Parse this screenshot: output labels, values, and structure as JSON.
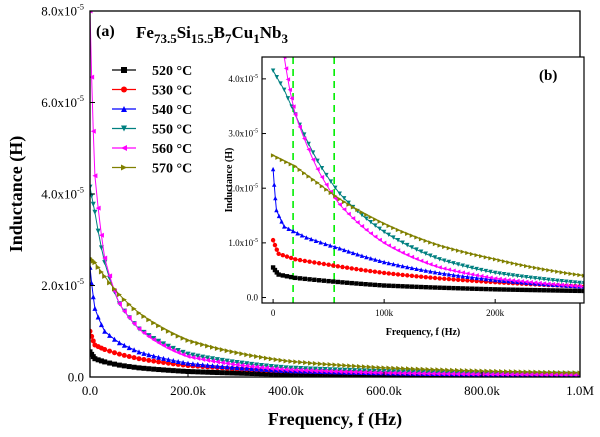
{
  "figure": {
    "label_a": "(a)",
    "label_b": "(b)",
    "composition": [
      {
        "t": "Fe",
        "sub": false
      },
      {
        "t": "73.5",
        "sub": true
      },
      {
        "t": "Si",
        "sub": false
      },
      {
        "t": "15.5",
        "sub": true
      },
      {
        "t": "B",
        "sub": false
      },
      {
        "t": "7",
        "sub": true
      },
      {
        "t": "Cu",
        "sub": false
      },
      {
        "t": "1",
        "sub": true
      },
      {
        "t": "Nb",
        "sub": false
      },
      {
        "t": "3",
        "sub": true
      }
    ]
  },
  "chart_data": [
    {
      "id": "main",
      "type": "line",
      "xlabel": "Frequency, f (Hz)",
      "ylabel": "Inductance (H)",
      "xlim": [
        0,
        1000000
      ],
      "ylim": [
        0,
        8e-05
      ],
      "xticks": [
        {
          "v": 0,
          "label": "0.0"
        },
        {
          "v": 200000,
          "label": "200.0k"
        },
        {
          "v": 400000,
          "label": "400.0k"
        },
        {
          "v": 600000,
          "label": "600.0k"
        },
        {
          "v": 800000,
          "label": "800.0k"
        },
        {
          "v": 1000000,
          "label": "1.0M"
        }
      ],
      "yticks": [
        {
          "v": 0,
          "label": "0.0",
          "exp": ""
        },
        {
          "v": 2e-05,
          "label": "2.0x10",
          "exp": "-5"
        },
        {
          "v": 4e-05,
          "label": "4.0x10",
          "exp": "-5"
        },
        {
          "v": 6e-05,
          "label": "6.0x10",
          "exp": "-5"
        },
        {
          "v": 8e-05,
          "label": "8.0x10",
          "exp": "-5"
        }
      ],
      "legend_position": "upper-left",
      "series": [
        {
          "name": "520 °C",
          "color": "#000000",
          "marker": "square",
          "x": [
            0,
            10000,
            30000,
            60000,
            100000,
            200000,
            400000,
            600000,
            800000,
            1000000
          ],
          "y": [
            5.5e-06,
            4e-06,
            3.3e-06,
            2.6e-06,
            2e-06,
            1.2e-06,
            6e-07,
            4e-07,
            3e-07,
            2.5e-07
          ]
        },
        {
          "name": "530 °C",
          "color": "#ff0000",
          "marker": "circle",
          "x": [
            0,
            10000,
            30000,
            60000,
            100000,
            200000,
            400000,
            600000,
            800000,
            1000000
          ],
          "y": [
            1e-05,
            7e-06,
            6e-06,
            5e-06,
            4e-06,
            2.5e-06,
            1.3e-06,
            9e-07,
            7e-07,
            6e-07
          ]
        },
        {
          "name": "540 °C",
          "color": "#0000ff",
          "marker": "triangle-up",
          "x": [
            0,
            10000,
            30000,
            60000,
            100000,
            200000,
            400000,
            600000,
            800000,
            1000000
          ],
          "y": [
            2.4e-05,
            1.5e-05,
            1e-05,
            7.5e-06,
            5.5e-06,
            3e-06,
            1.4e-06,
            9e-07,
            6.5e-07,
            5e-07
          ]
        },
        {
          "name": "550 °C",
          "color": "#008080",
          "marker": "triangle-down",
          "x": [
            0,
            10000,
            30000,
            60000,
            100000,
            200000,
            400000,
            600000,
            800000,
            1000000
          ],
          "y": [
            4.15e-05,
            3.6e-05,
            2.5e-05,
            1.6e-05,
            1.05e-05,
            5e-06,
            2e-06,
            1.2e-06,
            8e-07,
            6e-07
          ]
        },
        {
          "name": "560 °C",
          "color": "#ff00ff",
          "marker": "triangle-left",
          "x": [
            0,
            10000,
            30000,
            60000,
            100000,
            200000,
            400000,
            600000,
            800000,
            1000000
          ],
          "y": [
            8e-05,
            4.4e-05,
            2.6e-05,
            1.6e-05,
            1.05e-05,
            4.5e-06,
            1.6e-06,
            9e-07,
            6e-07,
            4.5e-07
          ]
        },
        {
          "name": "570 °C",
          "color": "#808000",
          "marker": "triangle-right",
          "x": [
            0,
            10000,
            30000,
            60000,
            100000,
            200000,
            400000,
            600000,
            800000,
            1000000
          ],
          "y": [
            2.6e-05,
            2.5e-05,
            2.2e-05,
            1.8e-05,
            1.4e-05,
            8e-06,
            3.5e-06,
            2e-06,
            1.3e-06,
            9e-07
          ]
        }
      ]
    },
    {
      "id": "inset",
      "type": "line",
      "xlabel": "Frequency, f (Hz)",
      "ylabel": "Inductance (H)",
      "xlim": [
        -10000,
        280000
      ],
      "ylim": [
        -1e-06,
        4.4e-05
      ],
      "xticks": [
        {
          "v": 0,
          "label": "0"
        },
        {
          "v": 100000,
          "label": "100k"
        },
        {
          "v": 200000,
          "label": "200k"
        }
      ],
      "yticks": [
        {
          "v": 0,
          "label": "0.0",
          "exp": ""
        },
        {
          "v": 1e-05,
          "label": "1.0x10",
          "exp": "-5"
        },
        {
          "v": 2e-05,
          "label": "2.0x10",
          "exp": "-5"
        },
        {
          "v": 3e-05,
          "label": "3.0x10",
          "exp": "-5"
        },
        {
          "v": 4e-05,
          "label": "4.0x10",
          "exp": "-5"
        }
      ],
      "vlines": [
        {
          "x": 18000,
          "color": "#00ee00",
          "style": "dashed"
        },
        {
          "x": 55000,
          "color": "#00ee00",
          "style": "dashed"
        }
      ],
      "series": [
        {
          "name": "520 °C",
          "color": "#000000",
          "marker": "square",
          "x": [
            0,
            5000,
            20000,
            50000,
            100000,
            150000,
            200000,
            280000
          ],
          "y": [
            5.5e-06,
            4.2e-06,
            3.6e-06,
            3e-06,
            2.2e-06,
            1.8e-06,
            1.5e-06,
            1.2e-06
          ]
        },
        {
          "name": "530 °C",
          "color": "#ff0000",
          "marker": "circle",
          "x": [
            0,
            5000,
            20000,
            50000,
            100000,
            150000,
            200000,
            280000
          ],
          "y": [
            1.05e-05,
            8e-06,
            7e-06,
            6e-06,
            4.5e-06,
            3.5e-06,
            2.8e-06,
            2e-06
          ]
        },
        {
          "name": "540 °C",
          "color": "#0000ff",
          "marker": "triangle-up",
          "x": [
            0,
            3000,
            10000,
            30000,
            60000,
            100000,
            150000,
            200000,
            280000
          ],
          "y": [
            2.35e-05,
            1.6e-05,
            1.3e-05,
            1.1e-05,
            9e-06,
            6.5e-06,
            4.5e-06,
            3.2e-06,
            2e-06
          ]
        },
        {
          "name": "550 °C",
          "color": "#008080",
          "marker": "triangle-down",
          "x": [
            0,
            10000,
            20000,
            40000,
            60000,
            100000,
            150000,
            200000,
            280000
          ],
          "y": [
            4.15e-05,
            3.8e-05,
            3.35e-05,
            2.5e-05,
            1.9e-05,
            1.2e-05,
            7e-06,
            4.5e-06,
            2.6e-06
          ]
        },
        {
          "name": "560 °C",
          "color": "#ff00ff",
          "marker": "triangle-left",
          "x": [
            10000,
            15000,
            20000,
            40000,
            60000,
            100000,
            150000,
            200000,
            280000
          ],
          "y": [
            4.4e-05,
            3.8e-05,
            3.35e-05,
            2.35e-05,
            1.7e-05,
            1e-05,
            5.5e-06,
            3.5e-06,
            2e-06
          ]
        },
        {
          "name": "570 °C",
          "color": "#808000",
          "marker": "triangle-right",
          "x": [
            0,
            20000,
            40000,
            60000,
            100000,
            150000,
            200000,
            280000
          ],
          "y": [
            2.6e-05,
            2.4e-05,
            2.1e-05,
            1.8e-05,
            1.35e-05,
            9.5e-06,
            7e-06,
            4e-06
          ]
        }
      ]
    }
  ]
}
